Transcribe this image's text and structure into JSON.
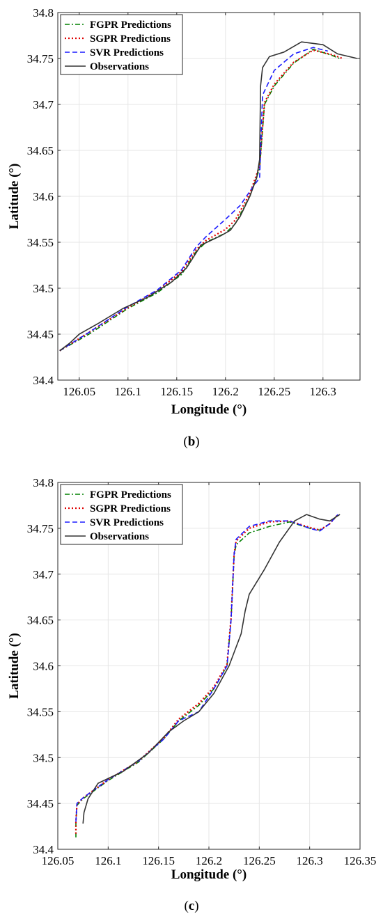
{
  "figures": [
    {
      "panel_label": "b",
      "chart_data": {
        "type": "line",
        "xlabel": "Longitude (°)",
        "ylabel": "Latitude (°)",
        "xlim": [
          126.028,
          126.338
        ],
        "ylim": [
          34.4,
          34.8
        ],
        "xticks": [
          126.05,
          126.1,
          126.15,
          126.2,
          126.25,
          126.3
        ],
        "xtick_labels": [
          "126.05",
          "126.1",
          "126.15",
          "126.2",
          "126.25",
          "126.3"
        ],
        "yticks": [
          34.4,
          34.45,
          34.5,
          34.55,
          34.6,
          34.65,
          34.7,
          34.75,
          34.8
        ],
        "ytick_labels": [
          "34.4",
          "34.45",
          "34.5",
          "34.55",
          "34.6",
          "34.65",
          "34.7",
          "34.75",
          "34.8"
        ],
        "grid": true,
        "legend_position": "top-left",
        "series": [
          {
            "name": "FGPR Predictions",
            "color": "#008000",
            "dash": "dashdot",
            "x": [
              126.03,
              126.06,
              126.1,
              126.13,
              126.155,
              126.17,
              126.18,
              126.2,
              126.21,
              126.225,
              126.235,
              126.24,
              126.25,
              126.27,
              126.29,
              126.31,
              126.317
            ],
            "y": [
              34.432,
              34.45,
              34.478,
              34.495,
              34.515,
              34.54,
              34.55,
              34.56,
              34.57,
              34.6,
              34.63,
              34.7,
              34.72,
              34.745,
              34.76,
              34.753,
              34.75
            ]
          },
          {
            "name": "SGPR Predictions",
            "color": "#e00000",
            "dash": "dotted",
            "x": [
              126.03,
              126.06,
              126.1,
              126.13,
              126.155,
              126.17,
              126.18,
              126.2,
              126.21,
              126.225,
              126.235,
              126.24,
              126.25,
              126.27,
              126.29,
              126.31,
              126.32
            ],
            "y": [
              34.432,
              34.452,
              34.479,
              34.497,
              34.518,
              34.542,
              34.552,
              34.564,
              34.574,
              34.603,
              34.633,
              34.702,
              34.722,
              34.746,
              34.759,
              34.754,
              34.75
            ]
          },
          {
            "name": "SVR Predictions",
            "color": "#1a1aff",
            "dash": "dashed",
            "x": [
              126.03,
              126.06,
              126.1,
              126.13,
              126.155,
              126.17,
              126.18,
              126.2,
              126.215,
              126.228,
              126.235,
              126.238,
              126.25,
              126.27,
              126.29,
              126.305
            ],
            "y": [
              34.432,
              34.452,
              34.48,
              34.498,
              34.52,
              34.545,
              34.556,
              34.575,
              34.59,
              34.61,
              34.62,
              34.71,
              34.737,
              34.755,
              34.762,
              34.758
            ]
          },
          {
            "name": "Observations",
            "color": "#333333",
            "dash": "solid",
            "x": [
              126.03,
              126.04,
              126.05,
              126.07,
              126.095,
              126.12,
              126.145,
              126.16,
              126.175,
              126.195,
              126.205,
              126.215,
              126.225,
              126.232,
              126.235,
              126.236,
              126.238,
              126.245,
              126.26,
              126.278,
              126.3,
              126.315,
              126.335
            ],
            "y": [
              34.432,
              34.44,
              34.45,
              34.462,
              34.478,
              34.49,
              34.507,
              34.522,
              34.547,
              34.557,
              34.563,
              34.578,
              34.6,
              34.62,
              34.64,
              34.72,
              34.74,
              34.752,
              34.757,
              34.768,
              34.765,
              34.755,
              34.75
            ]
          }
        ]
      }
    },
    {
      "panel_label": "c",
      "chart_data": {
        "type": "line",
        "xlabel": "Longitude (°)",
        "ylabel": "Latitude (°)",
        "xlim": [
          126.05,
          126.35
        ],
        "ylim": [
          34.4,
          34.8
        ],
        "xticks": [
          126.05,
          126.1,
          126.15,
          126.2,
          126.25,
          126.3,
          126.35
        ],
        "xtick_labels": [
          "126.05",
          "126.1",
          "126.15",
          "126.2",
          "126.25",
          "126.3",
          "126.35"
        ],
        "yticks": [
          34.4,
          34.45,
          34.5,
          34.55,
          34.6,
          34.65,
          34.7,
          34.75,
          34.8
        ],
        "ytick_labels": [
          "34.4",
          "34.45",
          "34.5",
          "34.55",
          "34.6",
          "34.65",
          "34.7",
          "34.75",
          "34.8"
        ],
        "grid": true,
        "legend_position": "top-left",
        "series": [
          {
            "name": "FGPR Predictions",
            "color": "#008000",
            "dash": "dashdot",
            "x": [
              126.068,
              126.068,
              126.069,
              126.075,
              126.1,
              126.13,
              126.155,
              126.17,
              126.19,
              126.205,
              126.218,
              126.222,
              126.225,
              126.227,
              126.24,
              126.26,
              126.28,
              126.3,
              126.31,
              126.32,
              126.328
            ],
            "y": [
              34.413,
              34.43,
              34.448,
              34.455,
              34.475,
              34.495,
              34.52,
              34.54,
              34.557,
              34.575,
              34.6,
              34.65,
              34.72,
              34.732,
              34.745,
              34.752,
              34.757,
              34.75,
              34.748,
              34.755,
              34.765
            ]
          },
          {
            "name": "SGPR Predictions",
            "color": "#e00000",
            "dash": "dotted",
            "x": [
              126.068,
              126.068,
              126.069,
              126.075,
              126.1,
              126.13,
              126.155,
              126.17,
              126.19,
              126.205,
              126.218,
              126.222,
              126.225,
              126.227,
              126.24,
              126.26,
              126.28,
              126.3,
              126.31,
              126.32,
              126.328
            ],
            "y": [
              34.417,
              34.43,
              34.449,
              34.456,
              34.476,
              34.496,
              34.521,
              34.542,
              34.559,
              34.577,
              34.602,
              34.652,
              34.722,
              34.736,
              34.75,
              34.757,
              34.758,
              34.751,
              34.748,
              34.755,
              34.765
            ]
          },
          {
            "name": "SVR Predictions",
            "color": "#1a1aff",
            "dash": "dashed",
            "x": [
              126.068,
              126.069,
              126.075,
              126.1,
              126.13,
              126.155,
              126.17,
              126.19,
              126.205,
              126.218,
              126.222,
              126.225,
              126.227,
              126.24,
              126.26,
              126.28,
              126.3,
              126.31,
              126.32,
              126.328
            ],
            "y": [
              34.43,
              34.45,
              34.456,
              34.476,
              34.496,
              34.52,
              34.54,
              34.55,
              34.575,
              34.6,
              34.65,
              34.722,
              34.738,
              34.752,
              34.758,
              34.758,
              34.75,
              34.747,
              34.755,
              34.765
            ]
          },
          {
            "name": "Observations",
            "color": "#333333",
            "dash": "solid",
            "x": [
              126.075,
              126.076,
              126.08,
              126.09,
              126.115,
              126.14,
              126.16,
              126.175,
              126.19,
              126.205,
              126.22,
              126.232,
              126.236,
              126.24,
              126.255,
              126.27,
              126.285,
              126.297,
              126.31,
              126.32,
              126.33
            ],
            "y": [
              34.428,
              34.44,
              34.455,
              34.472,
              34.485,
              34.505,
              34.528,
              34.54,
              34.55,
              34.57,
              34.6,
              34.635,
              34.66,
              34.678,
              34.705,
              34.735,
              34.758,
              34.765,
              34.76,
              34.758,
              34.765
            ]
          }
        ]
      }
    }
  ]
}
